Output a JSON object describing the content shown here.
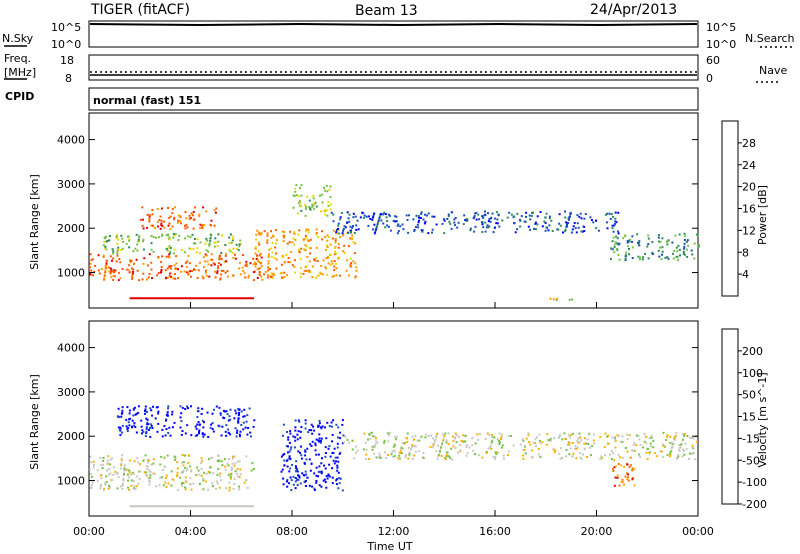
{
  "header": {
    "radar": "TIGER (fitACF)",
    "beam": "Beam 13",
    "date": "24/Apr/2013"
  },
  "top_panels": {
    "nsky": {
      "label": "N.Sky",
      "ticks": [
        "10^5",
        "10^0"
      ]
    },
    "nsearch": {
      "label": "N.Search",
      "ticks": [
        "10^5",
        "10^0"
      ]
    },
    "freq": {
      "label_line1": "Freq.",
      "label_line2": "[MHz]",
      "ticks": [
        "18",
        "8"
      ]
    },
    "nave": {
      "label": "Nave",
      "ticks": [
        "60",
        "0"
      ]
    },
    "cpid": {
      "label": "CPID",
      "value": "normal (fast) 151"
    }
  },
  "chart_data": [
    {
      "type": "heatmap",
      "name": "power",
      "ylabel": "Slant Range [km]",
      "xlabel": "Time UT",
      "x_ticks": [
        "00:00",
        "04:00",
        "08:00",
        "12:00",
        "16:00",
        "20:00",
        "00:00"
      ],
      "xlim_hours": [
        0,
        24
      ],
      "y_ticks": [
        1000,
        2000,
        3000,
        4000
      ],
      "ylim": [
        200,
        4600
      ],
      "colorbar": {
        "label": "Power [dB]",
        "ticks": [
          "4",
          "8",
          "12",
          "16",
          "20",
          "24",
          "28"
        ]
      },
      "colors": [
        "#0000ff",
        "#1a4fbd",
        "#2e8b57",
        "#76c043",
        "#e6d800",
        "#ff9800",
        "#ff5a00",
        "#e00000"
      ],
      "scatter_bands": [
        {
          "t0": 0.0,
          "t1": 6.8,
          "r0": 850,
          "r1": 1450,
          "level": 6
        },
        {
          "t0": 0.5,
          "t1": 6.0,
          "r0": 1450,
          "r1": 1900,
          "level": 3
        },
        {
          "t0": 2.0,
          "t1": 5.0,
          "r0": 2000,
          "r1": 2500,
          "level": 6
        },
        {
          "t0": 6.5,
          "t1": 10.5,
          "r0": 900,
          "r1": 2000,
          "level": 5
        },
        {
          "t0": 9.5,
          "t1": 21.0,
          "r0": 1900,
          "r1": 2400,
          "level": 1
        },
        {
          "t0": 20.5,
          "t1": 24.0,
          "r0": 1300,
          "r1": 1900,
          "level": 2
        },
        {
          "t0": 8.0,
          "t1": 9.5,
          "r0": 2300,
          "r1": 3000,
          "level": 3
        },
        {
          "t0": 18.0,
          "t1": 19.5,
          "r0": 380,
          "r1": 450,
          "level": 4
        }
      ],
      "line_segments": [
        {
          "t0": 1.6,
          "t1": 6.5,
          "r": 420,
          "level": 7
        }
      ]
    },
    {
      "type": "heatmap",
      "name": "velocity",
      "ylabel": "Slant Range [km]",
      "xlabel": "Time UT",
      "x_ticks": [
        "00:00",
        "04:00",
        "08:00",
        "12:00",
        "16:00",
        "20:00",
        "00:00"
      ],
      "xlim_hours": [
        0,
        24
      ],
      "y_ticks": [
        1000,
        2000,
        3000,
        4000
      ],
      "ylim": [
        200,
        4600
      ],
      "colorbar": {
        "label": "Velocity [m s^-1]",
        "ticks": [
          "200",
          "100",
          "50",
          "15",
          "-15",
          "-50",
          "-100",
          "-200"
        ]
      },
      "colors": [
        "#0000ff",
        "#1a4fbd",
        "#2e8b57",
        "#76c043",
        "#c8c8c0",
        "#ffb000",
        "#ff7000",
        "#e00000"
      ],
      "scatter_bands": [
        {
          "t0": 0.0,
          "t1": 6.5,
          "r0": 800,
          "r1": 1600,
          "level": 4
        },
        {
          "t0": 1.0,
          "t1": 6.5,
          "r0": 2000,
          "r1": 2700,
          "level": 0
        },
        {
          "t0": 7.5,
          "t1": 10.0,
          "r0": 800,
          "r1": 2400,
          "level": 0
        },
        {
          "t0": 10.0,
          "t1": 24.0,
          "r0": 1500,
          "r1": 2100,
          "level": 4
        },
        {
          "t0": 20.5,
          "t1": 21.5,
          "r0": 900,
          "r1": 1500,
          "level": 6
        }
      ],
      "line_segments": [
        {
          "t0": 1.6,
          "t1": 6.5,
          "r": 420,
          "level": 4
        }
      ]
    }
  ]
}
